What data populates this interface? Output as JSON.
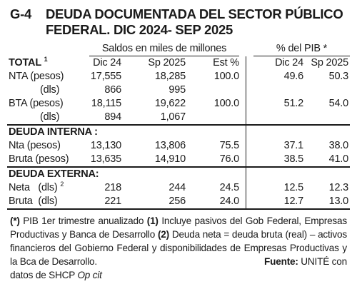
{
  "title": {
    "code": "G-4",
    "line1": "DEUDA DOCUMENTADA DEL SECTOR PÚBLICO",
    "line2": "FEDERAL. DIC 2024- SEP 2025"
  },
  "header": {
    "group1": "Saldos en miles de millones",
    "group2": "% del PIB *",
    "cols": [
      "Dic 24",
      "Sp 2025",
      "Est %",
      "Dic 24",
      "Sp 2025"
    ]
  },
  "total": {
    "label": "TOTAL",
    "sup": "1",
    "rows": [
      {
        "label": "NTA (pesos)",
        "v": [
          "17,555",
          "18,285",
          "100.0",
          "49.6",
          "50.3"
        ]
      },
      {
        "label": "(dls)",
        "v": [
          "866",
          "995",
          "",
          "",
          ""
        ]
      },
      {
        "label": "BTA (pesos)",
        "v": [
          "18,115",
          "19,622",
          "100.0",
          "51.2",
          "54.0"
        ]
      },
      {
        "label": "(dls)",
        "v": [
          "894",
          "1,067",
          "",
          "",
          ""
        ]
      }
    ]
  },
  "interna": {
    "label": "DEUDA INTERNA :",
    "rows": [
      {
        "label": "Nta (pesos)",
        "v": [
          "13,130",
          "13,806",
          "75.5",
          "37.1",
          "38.0"
        ]
      },
      {
        "label": "Bruta (pesos)",
        "v": [
          "13,635",
          "14,910",
          "76.0",
          "38.5",
          "41.0"
        ]
      }
    ]
  },
  "externa": {
    "label": "DEUDA EXTERNA:",
    "rows": [
      {
        "label": "Neta   (dls)",
        "sup": "2",
        "v": [
          "218",
          "244",
          "24.5",
          "12.5",
          "12.3"
        ]
      },
      {
        "label": "Bruta  (dls)",
        "v": [
          "221",
          "256",
          "24.0",
          "12.7",
          "13.0"
        ]
      }
    ]
  },
  "notes": {
    "n1_mark": "(*)",
    "n1_text": " PIB 1er trimestre anualizado ",
    "n2_mark": "(1)",
    "n2_text": " Incluye pasivos del Gob Federal, Empresas Productivas y Banca de Desarrollo ",
    "n3_mark": "(2)",
    "n3_text": " Deuda neta = deuda bruta (real) – activos financieros del Gobierno Federal y disponibilidades de Empresas Productivas y la Bca de Desarrollo.",
    "source_label": "Fuente:",
    "source_text": " UNITÉ con datos de SHCP ",
    "source_italic": "Op cit"
  }
}
